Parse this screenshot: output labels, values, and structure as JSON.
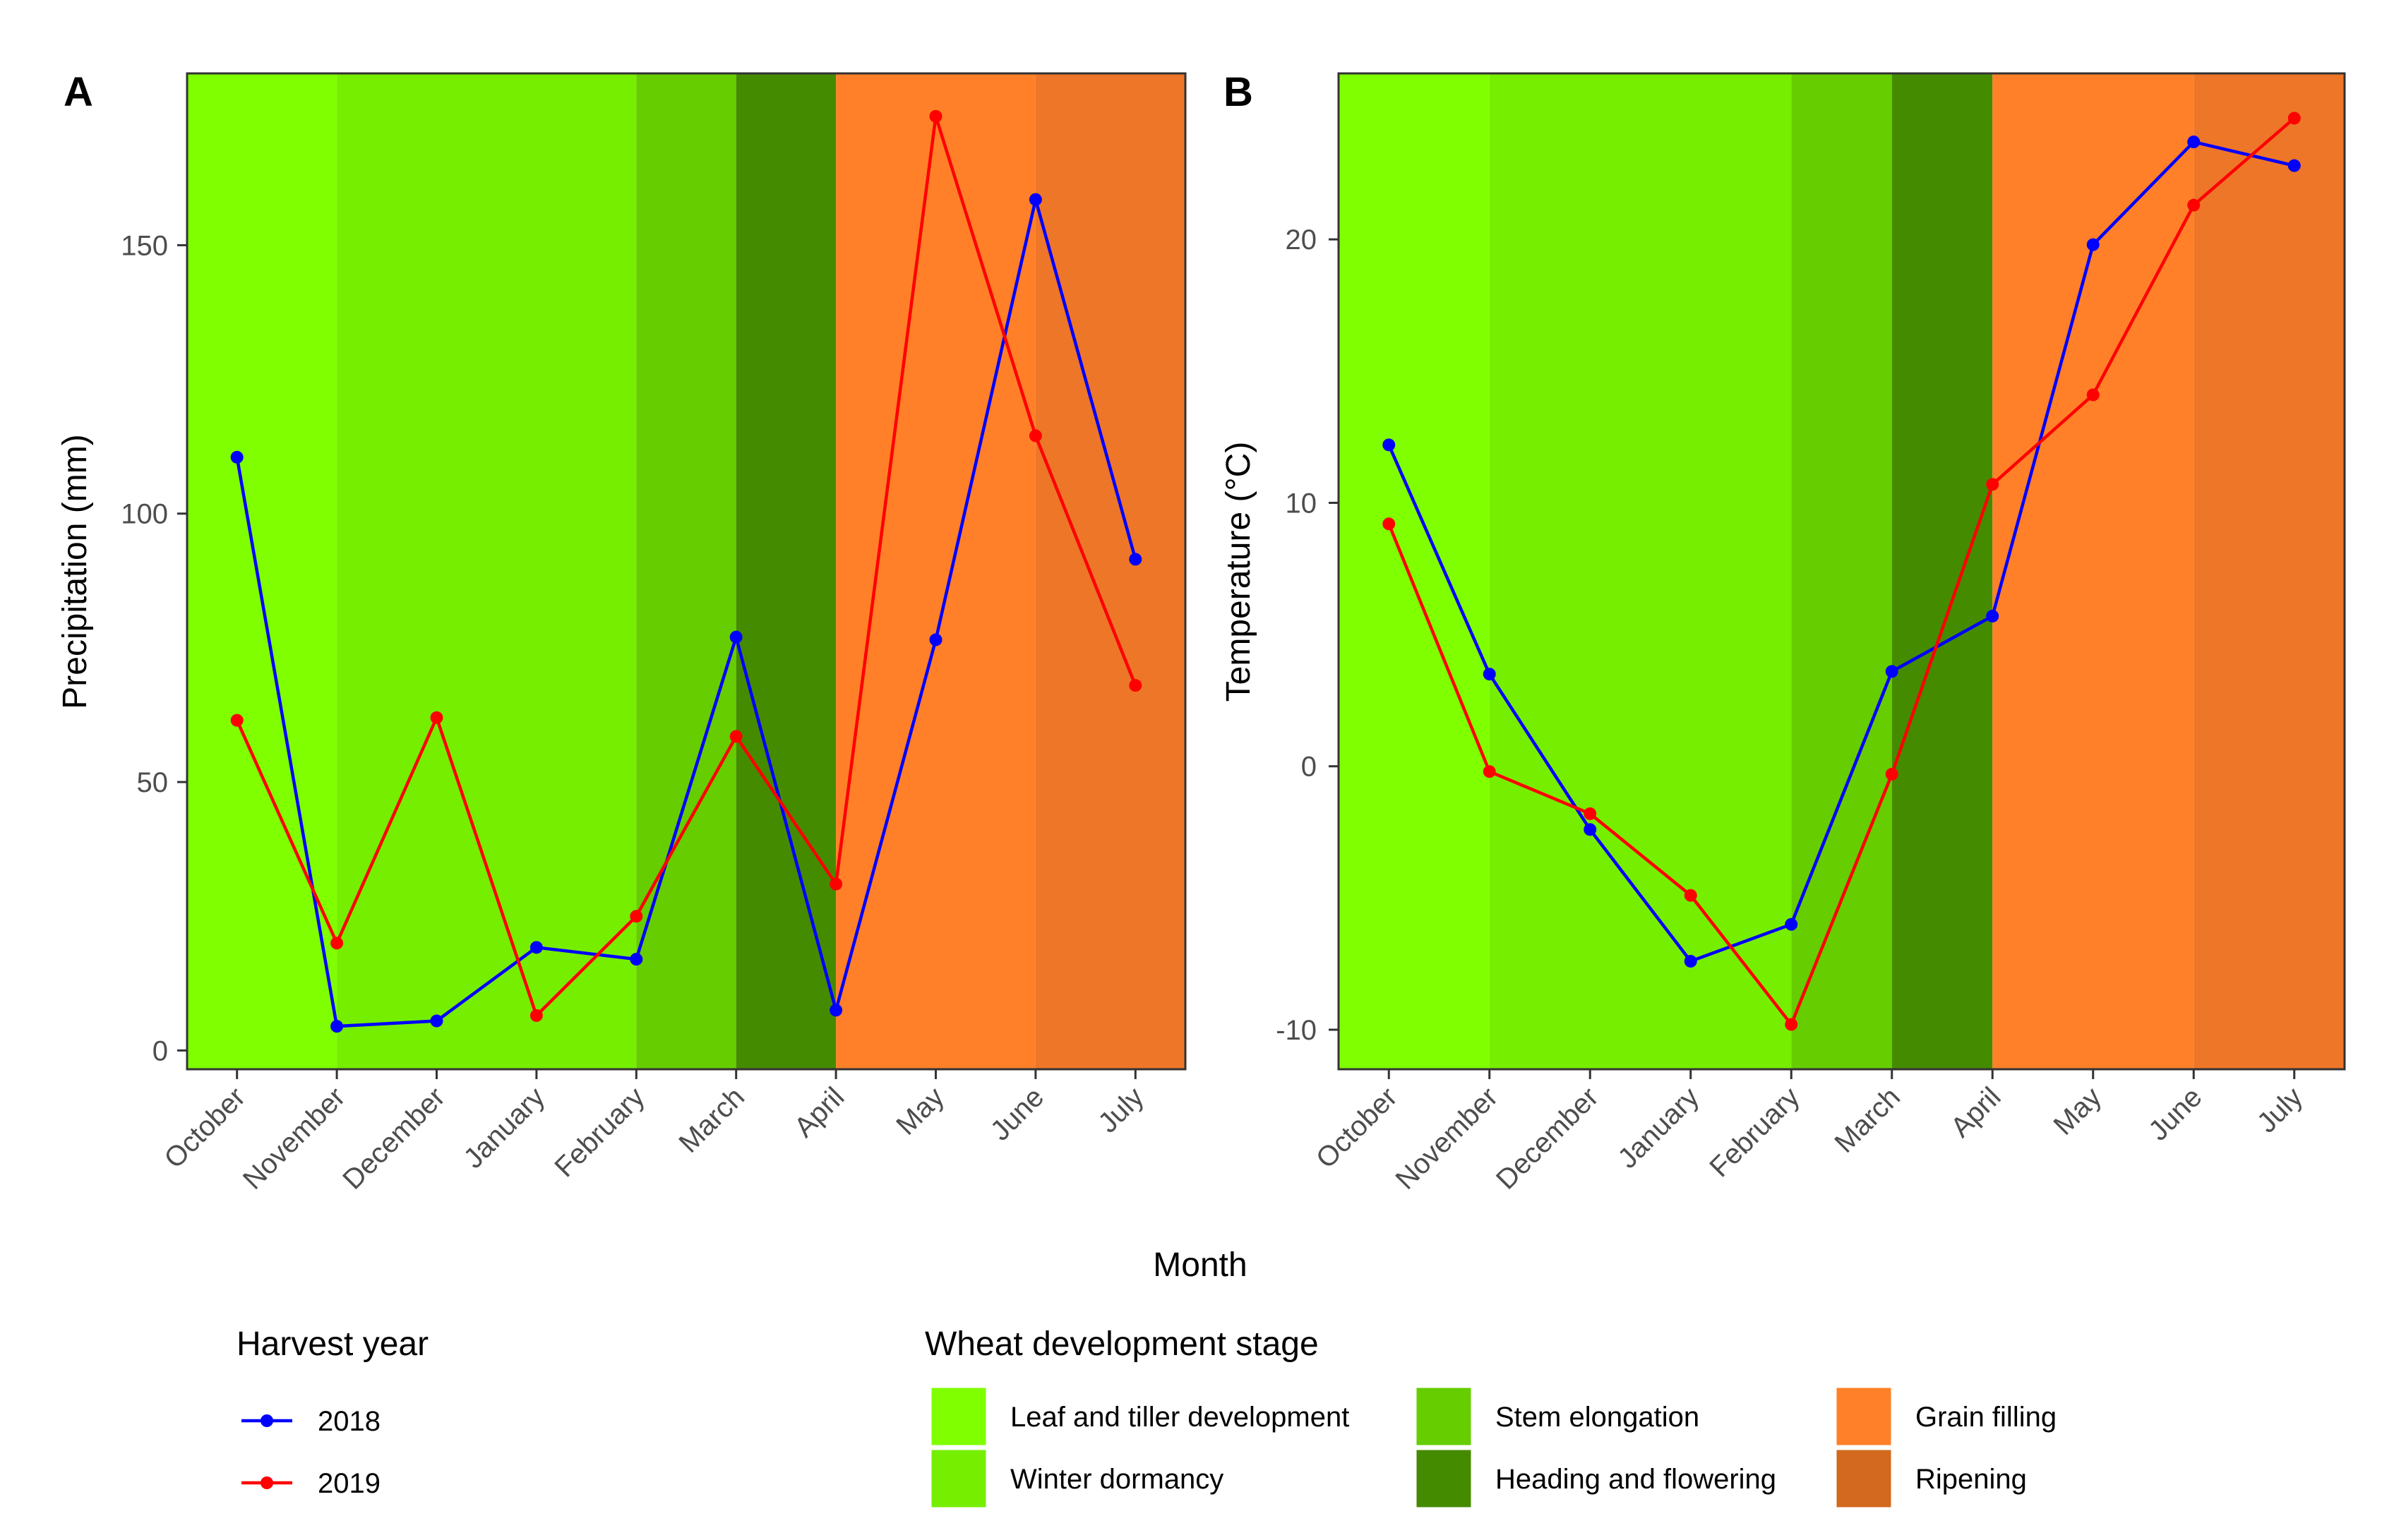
{
  "chart_data": [
    {
      "type": "line",
      "panel_label": "A",
      "xlabel": "",
      "ylabel": "Precipitation (mm)",
      "categories": [
        "October",
        "November",
        "December",
        "January",
        "February",
        "March",
        "April",
        "May",
        "June",
        "July"
      ],
      "ylim": [
        -3.5,
        182
      ],
      "yticks": [
        0,
        50,
        100,
        150
      ],
      "series": [
        {
          "name": "2018",
          "color": "#0000ff",
          "values": [
            110.5,
            4.5,
            5.5,
            19.2,
            17.0,
            77.0,
            7.5,
            76.5,
            158.5,
            91.5
          ]
        },
        {
          "name": "2019",
          "color": "#ff0000",
          "values": [
            61.5,
            20.0,
            62.0,
            6.5,
            25.0,
            58.5,
            31.0,
            174.0,
            114.5,
            68.0
          ]
        }
      ],
      "stages": [
        {
          "stage": "Leaf and tiller development",
          "from": "October",
          "to": "November"
        },
        {
          "stage": "Winter dormancy",
          "from": "November",
          "to": "February"
        },
        {
          "stage": "Stem elongation",
          "from": "February",
          "to": "March"
        },
        {
          "stage": "Heading and flowering",
          "from": "March",
          "to": "April"
        },
        {
          "stage": "Grain filling",
          "from": "April",
          "to": "June"
        },
        {
          "stage": "Ripening",
          "from": "June",
          "to": "July"
        }
      ]
    },
    {
      "type": "line",
      "panel_label": "B",
      "xlabel": "",
      "ylabel": "Temperature (°C)",
      "categories": [
        "October",
        "November",
        "December",
        "January",
        "February",
        "March",
        "April",
        "May",
        "June",
        "July"
      ],
      "ylim": [
        -11.5,
        26.3
      ],
      "yticks": [
        -10,
        0,
        10,
        20
      ],
      "series": [
        {
          "name": "2018",
          "color": "#0000ff",
          "values": [
            12.2,
            3.5,
            -2.4,
            -7.4,
            -6.0,
            3.6,
            5.7,
            19.8,
            23.7,
            22.8
          ]
        },
        {
          "name": "2019",
          "color": "#ff0000",
          "values": [
            9.2,
            -0.2,
            -1.8,
            -4.9,
            -9.8,
            -0.3,
            10.7,
            14.1,
            21.3,
            24.6
          ]
        }
      ],
      "stages": [
        {
          "stage": "Leaf and tiller development",
          "from": "October",
          "to": "November"
        },
        {
          "stage": "Winter dormancy",
          "from": "November",
          "to": "February"
        },
        {
          "stage": "Stem elongation",
          "from": "February",
          "to": "March"
        },
        {
          "stage": "Heading and flowering",
          "from": "March",
          "to": "April"
        },
        {
          "stage": "Grain filling",
          "from": "April",
          "to": "June"
        },
        {
          "stage": "Ripening",
          "from": "June",
          "to": "July"
        }
      ]
    }
  ],
  "shared_xlabel": "Month",
  "legend_year": {
    "title": "Harvest year",
    "items": [
      {
        "label": "2018",
        "color": "#0000ff"
      },
      {
        "label": "2019",
        "color": "#ff0000"
      }
    ]
  },
  "legend_stage": {
    "title": "Wheat development stage",
    "items": [
      {
        "label": "Leaf and tiller development",
        "color": "#7fff00"
      },
      {
        "label": "Winter dormancy",
        "color": "#76ee00"
      },
      {
        "label": "Stem elongation",
        "color": "#66cd00"
      },
      {
        "label": "Heading and flowering",
        "color": "#458b00"
      },
      {
        "label": "Grain filling",
        "color": "#ff8028"
      },
      {
        "label": "Ripening",
        "color": "#ee7628"
      }
    ],
    "legend_key_colors": {
      "Ripening": "#d2691e"
    }
  }
}
